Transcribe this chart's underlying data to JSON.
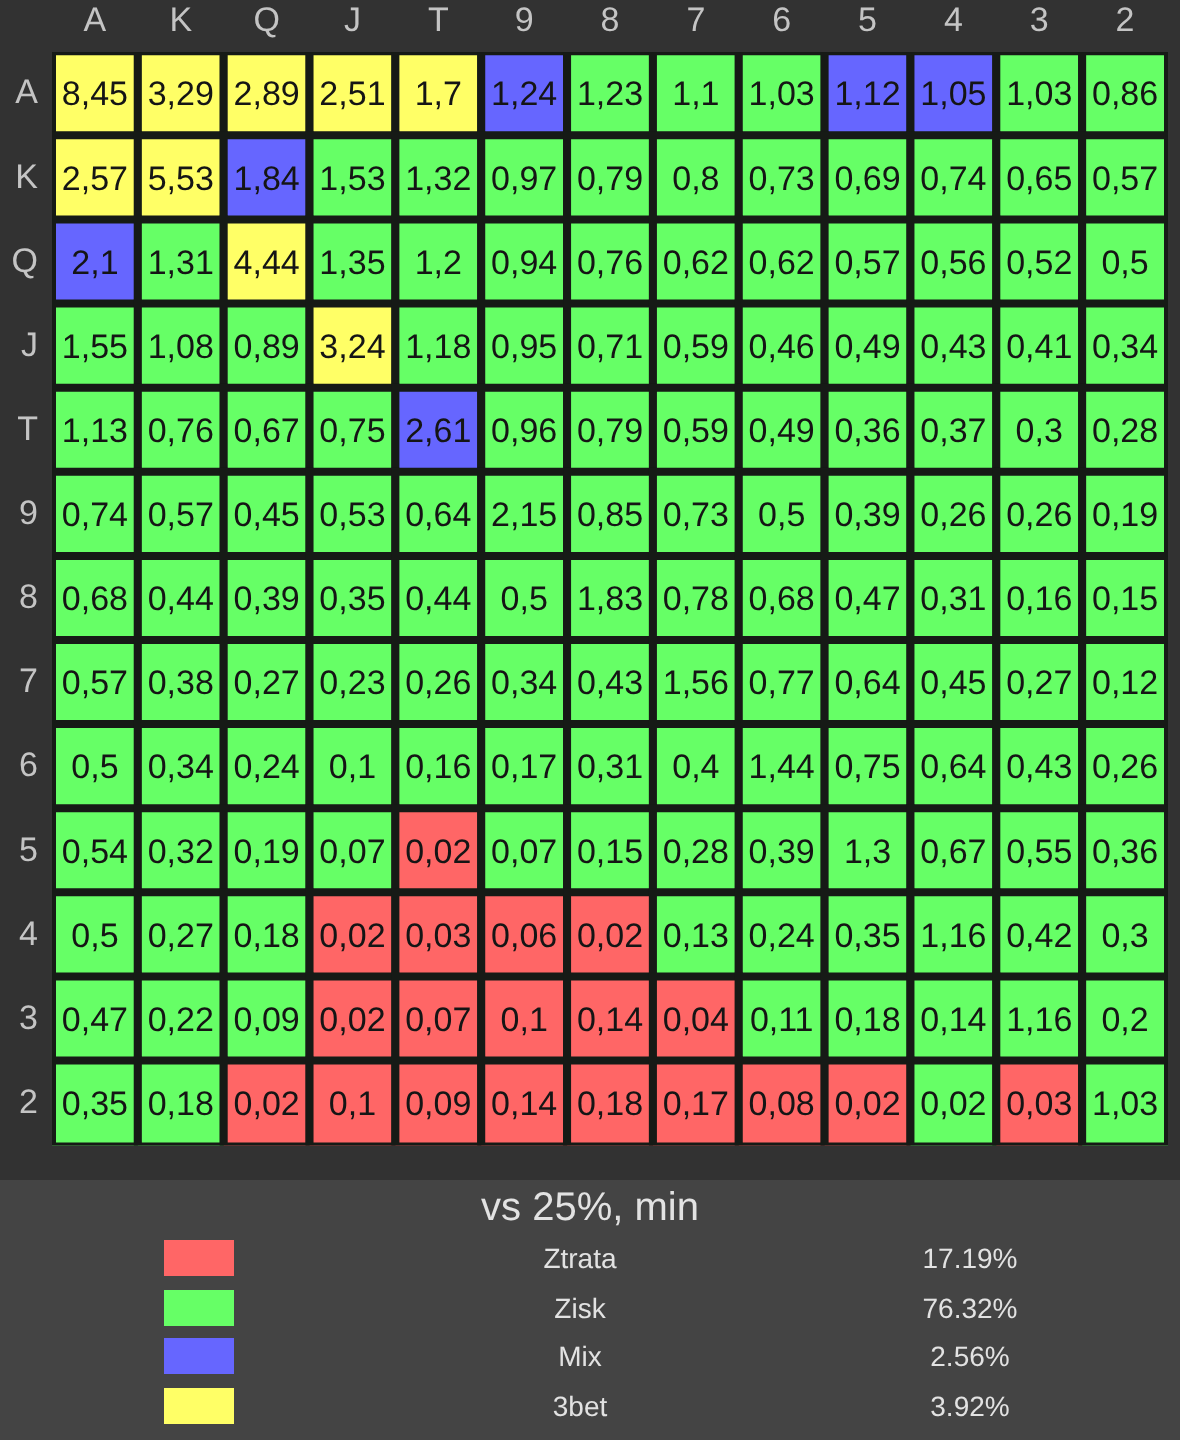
{
  "chart_data": [
    {
      "type": "heatmap",
      "categories": [
        "A",
        "K",
        "Q",
        "J",
        "T",
        "9",
        "8",
        "7",
        "6",
        "5",
        "4",
        "3",
        "2"
      ],
      "y_categories": [
        "A",
        "K",
        "Q",
        "J",
        "T",
        "9",
        "8",
        "7",
        "6",
        "5",
        "4",
        "3",
        "2"
      ],
      "cells": [
        [
          8.45,
          3.29,
          2.89,
          2.51,
          1.7,
          1.24,
          1.23,
          1.1,
          1.03,
          1.12,
          1.05,
          1.03,
          0.86
        ],
        [
          2.57,
          5.53,
          1.84,
          1.53,
          1.32,
          0.97,
          0.79,
          0.8,
          0.73,
          0.69,
          0.74,
          0.65,
          0.57
        ],
        [
          2.1,
          1.31,
          4.44,
          1.35,
          1.2,
          0.94,
          0.76,
          0.62,
          0.62,
          0.57,
          0.56,
          0.52,
          0.5
        ],
        [
          1.55,
          1.08,
          0.89,
          3.24,
          1.18,
          0.95,
          0.71,
          0.59,
          0.46,
          0.49,
          0.43,
          0.41,
          0.34
        ],
        [
          1.13,
          0.76,
          0.67,
          0.75,
          2.61,
          0.96,
          0.79,
          0.59,
          0.49,
          0.36,
          0.37,
          0.3,
          0.28
        ],
        [
          0.74,
          0.57,
          0.45,
          0.53,
          0.64,
          2.15,
          0.85,
          0.73,
          0.5,
          0.39,
          0.26,
          0.26,
          0.19
        ],
        [
          0.68,
          0.44,
          0.39,
          0.35,
          0.44,
          0.5,
          1.83,
          0.78,
          0.68,
          0.47,
          0.31,
          0.16,
          0.15
        ],
        [
          0.57,
          0.38,
          0.27,
          0.23,
          0.26,
          0.34,
          0.43,
          1.56,
          0.77,
          0.64,
          0.45,
          0.27,
          0.12
        ],
        [
          0.5,
          0.34,
          0.24,
          0.1,
          0.16,
          0.17,
          0.31,
          0.4,
          1.44,
          0.75,
          0.64,
          0.43,
          0.26
        ],
        [
          0.54,
          0.32,
          0.19,
          0.07,
          0.02,
          0.07,
          0.15,
          0.28,
          0.39,
          1.3,
          0.67,
          0.55,
          0.36
        ],
        [
          0.5,
          0.27,
          0.18,
          0.02,
          0.03,
          0.06,
          0.02,
          0.13,
          0.24,
          0.35,
          1.16,
          0.42,
          0.3
        ],
        [
          0.47,
          0.22,
          0.09,
          0.02,
          0.07,
          0.1,
          0.14,
          0.04,
          0.11,
          0.18,
          0.14,
          1.16,
          0.2
        ],
        [
          0.35,
          0.18,
          0.02,
          0.1,
          0.09,
          0.14,
          0.18,
          0.17,
          0.08,
          0.02,
          0.02,
          0.03,
          1.03
        ]
      ],
      "cell_labels": [
        [
          "8,45",
          "3,29",
          "2,89",
          "2,51",
          "1,7",
          "1,24",
          "1,23",
          "1,1",
          "1,03",
          "1,12",
          "1,05",
          "1,03",
          "0,86"
        ],
        [
          "2,57",
          "5,53",
          "1,84",
          "1,53",
          "1,32",
          "0,97",
          "0,79",
          "0,8",
          "0,73",
          "0,69",
          "0,74",
          "0,65",
          "0,57"
        ],
        [
          "2,1",
          "1,31",
          "4,44",
          "1,35",
          "1,2",
          "0,94",
          "0,76",
          "0,62",
          "0,62",
          "0,57",
          "0,56",
          "0,52",
          "0,5"
        ],
        [
          "1,55",
          "1,08",
          "0,89",
          "3,24",
          "1,18",
          "0,95",
          "0,71",
          "0,59",
          "0,46",
          "0,49",
          "0,43",
          "0,41",
          "0,34"
        ],
        [
          "1,13",
          "0,76",
          "0,67",
          "0,75",
          "2,61",
          "0,96",
          "0,79",
          "0,59",
          "0,49",
          "0,36",
          "0,37",
          "0,3",
          "0,28"
        ],
        [
          "0,74",
          "0,57",
          "0,45",
          "0,53",
          "0,64",
          "2,15",
          "0,85",
          "0,73",
          "0,5",
          "0,39",
          "0,26",
          "0,26",
          "0,19"
        ],
        [
          "0,68",
          "0,44",
          "0,39",
          "0,35",
          "0,44",
          "0,5",
          "1,83",
          "0,78",
          "0,68",
          "0,47",
          "0,31",
          "0,16",
          "0,15"
        ],
        [
          "0,57",
          "0,38",
          "0,27",
          "0,23",
          "0,26",
          "0,34",
          "0,43",
          "1,56",
          "0,77",
          "0,64",
          "0,45",
          "0,27",
          "0,12"
        ],
        [
          "0,5",
          "0,34",
          "0,24",
          "0,1",
          "0,16",
          "0,17",
          "0,31",
          "0,4",
          "1,44",
          "0,75",
          "0,64",
          "0,43",
          "0,26"
        ],
        [
          "0,54",
          "0,32",
          "0,19",
          "0,07",
          "0,02",
          "0,07",
          "0,15",
          "0,28",
          "0,39",
          "1,3",
          "0,67",
          "0,55",
          "0,36"
        ],
        [
          "0,5",
          "0,27",
          "0,18",
          "0,02",
          "0,03",
          "0,06",
          "0,02",
          "0,13",
          "0,24",
          "0,35",
          "1,16",
          "0,42",
          "0,3"
        ],
        [
          "0,47",
          "0,22",
          "0,09",
          "0,02",
          "0,07",
          "0,1",
          "0,14",
          "0,04",
          "0,11",
          "0,18",
          "0,14",
          "1,16",
          "0,2"
        ],
        [
          "0,35",
          "0,18",
          "0,02",
          "0,1",
          "0,09",
          "0,14",
          "0,18",
          "0,17",
          "0,08",
          "0,02",
          "0,02",
          "0,03",
          "1,03"
        ]
      ],
      "colors": [
        [
          "#ffff66",
          "#ffff66",
          "#ffff66",
          "#ffff66",
          "#ffff66",
          "#6666ff",
          "#66ff66",
          "#66ff66",
          "#66ff66",
          "#6666ff",
          "#6666ff",
          "#66ff66",
          "#66ff66"
        ],
        [
          "#ffff66",
          "#ffff66",
          "#6666ff",
          "#66ff66",
          "#66ff66",
          "#66ff66",
          "#66ff66",
          "#66ff66",
          "#66ff66",
          "#66ff66",
          "#66ff66",
          "#66ff66",
          "#66ff66"
        ],
        [
          "#6666ff",
          "#66ff66",
          "#ffff66",
          "#66ff66",
          "#66ff66",
          "#66ff66",
          "#66ff66",
          "#66ff66",
          "#66ff66",
          "#66ff66",
          "#66ff66",
          "#66ff66",
          "#66ff66"
        ],
        [
          "#66ff66",
          "#66ff66",
          "#66ff66",
          "#ffff66",
          "#66ff66",
          "#66ff66",
          "#66ff66",
          "#66ff66",
          "#66ff66",
          "#66ff66",
          "#66ff66",
          "#66ff66",
          "#66ff66"
        ],
        [
          "#66ff66",
          "#66ff66",
          "#66ff66",
          "#66ff66",
          "#6666ff",
          "#66ff66",
          "#66ff66",
          "#66ff66",
          "#66ff66",
          "#66ff66",
          "#66ff66",
          "#66ff66",
          "#66ff66"
        ],
        [
          "#66ff66",
          "#66ff66",
          "#66ff66",
          "#66ff66",
          "#66ff66",
          "#66ff66",
          "#66ff66",
          "#66ff66",
          "#66ff66",
          "#66ff66",
          "#66ff66",
          "#66ff66",
          "#66ff66"
        ],
        [
          "#66ff66",
          "#66ff66",
          "#66ff66",
          "#66ff66",
          "#66ff66",
          "#66ff66",
          "#66ff66",
          "#66ff66",
          "#66ff66",
          "#66ff66",
          "#66ff66",
          "#66ff66",
          "#66ff66"
        ],
        [
          "#66ff66",
          "#66ff66",
          "#66ff66",
          "#66ff66",
          "#66ff66",
          "#66ff66",
          "#66ff66",
          "#66ff66",
          "#66ff66",
          "#66ff66",
          "#66ff66",
          "#66ff66",
          "#66ff66"
        ],
        [
          "#66ff66",
          "#66ff66",
          "#66ff66",
          "#66ff66",
          "#66ff66",
          "#66ff66",
          "#66ff66",
          "#66ff66",
          "#66ff66",
          "#66ff66",
          "#66ff66",
          "#66ff66",
          "#66ff66"
        ],
        [
          "#66ff66",
          "#66ff66",
          "#66ff66",
          "#66ff66",
          "#ff6666",
          "#66ff66",
          "#66ff66",
          "#66ff66",
          "#66ff66",
          "#66ff66",
          "#66ff66",
          "#66ff66",
          "#66ff66"
        ],
        [
          "#66ff66",
          "#66ff66",
          "#66ff66",
          "#ff6666",
          "#ff6666",
          "#ff6666",
          "#ff6666",
          "#66ff66",
          "#66ff66",
          "#66ff66",
          "#66ff66",
          "#66ff66",
          "#66ff66"
        ],
        [
          "#66ff66",
          "#66ff66",
          "#66ff66",
          "#ff6666",
          "#ff6666",
          "#ff6666",
          "#ff6666",
          "#ff6666",
          "#66ff66",
          "#66ff66",
          "#66ff66",
          "#66ff66",
          "#66ff66"
        ],
        [
          "#66ff66",
          "#66ff66",
          "#ff6666",
          "#ff6666",
          "#ff6666",
          "#ff6666",
          "#ff6666",
          "#ff6666",
          "#ff6666",
          "#ff6666",
          "#66ff66",
          "#ff6666",
          "#66ff66"
        ]
      ],
      "data_labels": true
    },
    {
      "type": "other",
      "title": "vs 25%, min",
      "categories": [
        "Ztrata",
        "Zisk",
        "Mix",
        "3bet"
      ],
      "colors": [
        "#ff6666",
        "#66ff66",
        "#6666ff",
        "#ffff66"
      ],
      "values": [
        17.19,
        76.32,
        2.56,
        3.92
      ],
      "value_labels": [
        "17.19%",
        "76.32%",
        "2.56%",
        "3.92%"
      ]
    }
  ]
}
